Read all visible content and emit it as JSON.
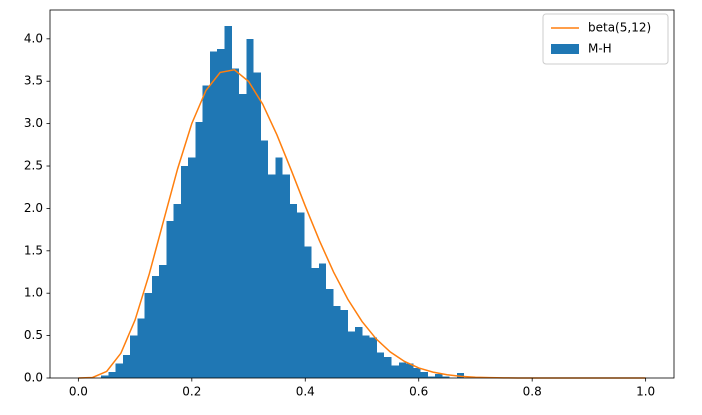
{
  "chart_data": {
    "type": "histogram",
    "xlim": [
      -0.05,
      1.05
    ],
    "ylim": [
      0,
      4.34
    ],
    "xticks": [
      {
        "value": 0,
        "label": "0.0"
      },
      0.2,
      0.4,
      0.6,
      0.8,
      {
        "value": 1,
        "label": "1.0"
      }
    ],
    "yticks": [
      {
        "value": 0,
        "label": "0.0"
      },
      0.5,
      {
        "value": 1,
        "label": "1.0"
      },
      1.5,
      {
        "value": 2,
        "label": "2.0"
      },
      2.5,
      {
        "value": 3,
        "label": "3.0"
      },
      3.5,
      {
        "value": 4,
        "label": "4.0"
      }
    ],
    "grid": false,
    "legend": "upper right",
    "series": [
      {
        "name": "beta(5,12)",
        "type": "line",
        "color": "#ff7f0e",
        "x": [
          0,
          0.025,
          0.05,
          0.075,
          0.1,
          0.125,
          0.15,
          0.175,
          0.2,
          0.225,
          0.25,
          0.275,
          0.3,
          0.325,
          0.35,
          0.375,
          0.4,
          0.425,
          0.45,
          0.475,
          0.5,
          0.525,
          0.55,
          0.575,
          0.6,
          0.625,
          0.65,
          0.675,
          0.7,
          0.725,
          0.75,
          0.775,
          0.8,
          0.85,
          0.9,
          0.95,
          1
        ],
        "values": [
          0,
          0.006,
          0.078,
          0.293,
          0.685,
          1.227,
          1.85,
          2.468,
          3.002,
          3.392,
          3.604,
          3.635,
          3.498,
          3.229,
          2.868,
          2.455,
          2.028,
          1.619,
          1.248,
          0.929,
          0.667,
          0.461,
          0.306,
          0.195,
          0.119,
          0.069,
          0.038,
          0.019,
          0.0093,
          0.0041,
          0.0016,
          0.0006,
          0.0002,
          0,
          0,
          0,
          0
        ]
      },
      {
        "name": "M-H",
        "type": "histogram",
        "color": "#1f77b4",
        "bins": [
          0.04,
          0.0528,
          0.0656,
          0.0784,
          0.0912,
          0.104,
          0.1168,
          0.1296,
          0.1424,
          0.1552,
          0.168,
          0.1808,
          0.1936,
          0.2064,
          0.2192,
          0.232,
          0.2448,
          0.2576,
          0.2704,
          0.2832,
          0.296,
          0.3088,
          0.3216,
          0.3344,
          0.3472,
          0.36,
          0.3728,
          0.3856,
          0.3984,
          0.4112,
          0.424,
          0.4368,
          0.4496,
          0.4624,
          0.4752,
          0.488,
          0.5008,
          0.5136,
          0.5264,
          0.5392,
          0.552,
          0.5648,
          0.5776,
          0.5904,
          0.6032,
          0.616,
          0.6288,
          0.6416,
          0.6544,
          0.6672,
          0.68
        ],
        "values": [
          0.03,
          0.07,
          0.17,
          0.27,
          0.5,
          0.7,
          1.0,
          1.2,
          1.33,
          1.85,
          2.05,
          2.5,
          2.6,
          3.02,
          3.45,
          3.85,
          3.88,
          4.15,
          3.65,
          3.35,
          4.0,
          3.6,
          2.8,
          2.4,
          2.6,
          2.4,
          2.05,
          1.95,
          1.55,
          1.3,
          1.35,
          1.05,
          0.85,
          0.8,
          0.55,
          0.6,
          0.5,
          0.48,
          0.3,
          0.25,
          0.15,
          0.18,
          0.17,
          0.12,
          0.07,
          0.02,
          0.05,
          0.02,
          0,
          0.06
        ]
      }
    ]
  }
}
